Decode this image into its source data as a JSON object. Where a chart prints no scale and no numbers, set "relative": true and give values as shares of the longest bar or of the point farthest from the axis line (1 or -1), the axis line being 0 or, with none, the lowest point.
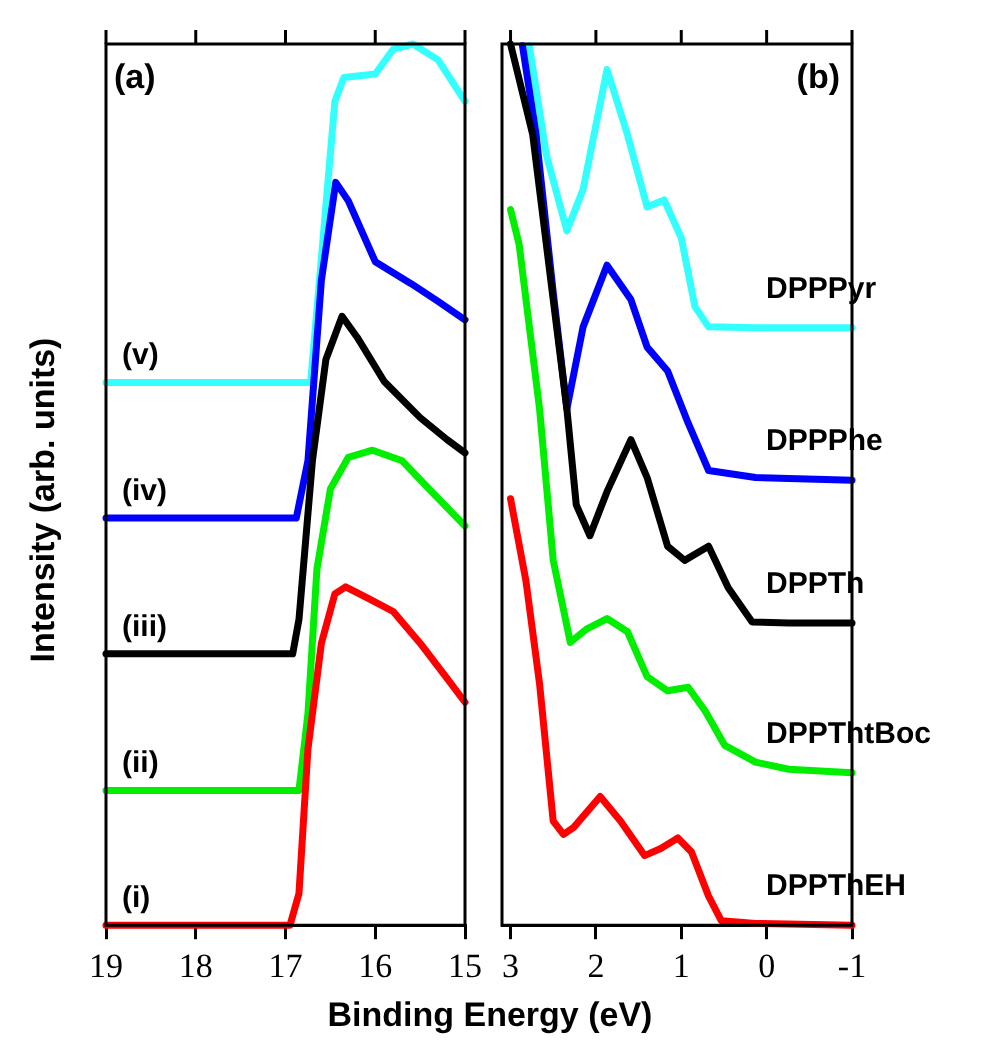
{
  "chart_data": [
    {
      "type": "line",
      "ylabel": "Intensity (arb. units)",
      "xlabel": "Binding Energy (eV)",
      "annotations": [
        "(a)"
      ],
      "relative": true,
      "xlim": [
        19,
        15
      ],
      "xticks": [
        19,
        18,
        17,
        16,
        15
      ],
      "grid": false,
      "legend": false,
      "marker": "none",
      "line_style": "solid",
      "series": [
        {
          "name": "(i)",
          "color": "#ff0000",
          "x": [
            19,
            16.95,
            16.85,
            16.75,
            16.6,
            16.45,
            16.33,
            16.1,
            15.8,
            15.5,
            15.2,
            15.0
          ],
          "values": [
            0.0,
            0.0,
            0.036,
            0.2,
            0.32,
            0.376,
            0.384,
            0.372,
            0.356,
            0.32,
            0.28,
            0.253
          ]
        },
        {
          "name": "(ii)",
          "color": "#00ee00",
          "x": [
            19,
            16.85,
            16.75,
            16.65,
            16.5,
            16.3,
            16.03,
            15.7,
            15.4,
            15.0
          ],
          "values": [
            0.153,
            0.153,
            0.24,
            0.404,
            0.495,
            0.531,
            0.539,
            0.527,
            0.495,
            0.453
          ]
        },
        {
          "name": "(iii)",
          "color": "#000000",
          "x": [
            19,
            16.92,
            16.85,
            16.7,
            16.55,
            16.37,
            16.2,
            15.9,
            15.5,
            15.2,
            15.0
          ],
          "values": [
            0.308,
            0.308,
            0.347,
            0.527,
            0.642,
            0.691,
            0.667,
            0.617,
            0.576,
            0.551,
            0.536
          ]
        },
        {
          "name": "(iv)",
          "color": "#0000ff",
          "x": [
            19,
            16.88,
            16.75,
            16.6,
            16.44,
            16.3,
            16.0,
            15.6,
            15.3,
            15.0
          ],
          "values": [
            0.462,
            0.462,
            0.527,
            0.732,
            0.843,
            0.822,
            0.753,
            0.728,
            0.708,
            0.687
          ]
        },
        {
          "name": "(v)",
          "color": "#33ffff",
          "x": [
            19,
            16.72,
            16.6,
            16.45,
            16.35,
            16.0,
            15.8,
            15.58,
            15.3,
            15.0
          ],
          "values": [
            0.616,
            0.616,
            0.757,
            0.935,
            0.962,
            0.966,
            0.994,
            1.0,
            0.982,
            0.935
          ]
        }
      ]
    },
    {
      "type": "line",
      "annotations": [
        "(b)"
      ],
      "relative": true,
      "xlim": [
        3.1,
        -1
      ],
      "xticks": [
        3,
        2,
        1,
        0,
        -1
      ],
      "grid": false,
      "legend": false,
      "marker": "none",
      "line_style": "solid",
      "series": [
        {
          "name": "DPPThEH",
          "color": "#ff0000",
          "x": [
            3.0,
            2.82,
            2.66,
            2.5,
            2.38,
            2.26,
            1.95,
            1.71,
            1.43,
            1.24,
            1.04,
            0.88,
            0.68,
            0.53,
            0.13,
            -1
          ],
          "values": [
            0.484,
            0.391,
            0.274,
            0.118,
            0.103,
            0.111,
            0.146,
            0.118,
            0.079,
            0.087,
            0.099,
            0.083,
            0.033,
            0.005,
            0.002,
            0.0
          ]
        },
        {
          "name": "DPPThtBoc",
          "color": "#00ee00",
          "x": [
            3.0,
            2.9,
            2.66,
            2.5,
            2.3,
            2.11,
            1.87,
            1.63,
            1.4,
            1.16,
            0.92,
            0.72,
            0.49,
            0.13,
            -0.26,
            -1
          ],
          "values": [
            0.812,
            0.773,
            0.586,
            0.414,
            0.321,
            0.336,
            0.348,
            0.333,
            0.282,
            0.266,
            0.27,
            0.243,
            0.204,
            0.185,
            0.177,
            0.173
          ]
        },
        {
          "name": "DPPTh",
          "color": "#000000",
          "x": [
            3.0,
            2.74,
            2.54,
            2.34,
            2.23,
            2.07,
            1.87,
            1.59,
            1.4,
            1.16,
            0.96,
            0.68,
            0.45,
            0.17,
            -0.26,
            -1
          ],
          "values": [
            1.0,
            0.897,
            0.741,
            0.586,
            0.477,
            0.442,
            0.492,
            0.551,
            0.508,
            0.43,
            0.414,
            0.43,
            0.383,
            0.344,
            0.343,
            0.343
          ]
        },
        {
          "name": "DPPPhe",
          "color": "#0000ff",
          "x": [
            2.86,
            2.7,
            2.5,
            2.34,
            2.15,
            1.87,
            1.59,
            1.4,
            1.16,
            0.92,
            0.68,
            0.13,
            -1
          ],
          "values": [
            0.998,
            0.897,
            0.718,
            0.586,
            0.679,
            0.749,
            0.71,
            0.656,
            0.629,
            0.57,
            0.516,
            0.508,
            0.505
          ]
        },
        {
          "name": "DPPPyr",
          "color": "#33ffff",
          "x": [
            2.78,
            2.58,
            2.34,
            2.15,
            1.87,
            1.63,
            1.4,
            1.2,
            1.0,
            0.84,
            0.68,
            0.13,
            -1
          ],
          "values": [
            0.998,
            0.874,
            0.788,
            0.835,
            0.971,
            0.897,
            0.815,
            0.823,
            0.78,
            0.702,
            0.679,
            0.678,
            0.678
          ]
        }
      ]
    }
  ]
}
